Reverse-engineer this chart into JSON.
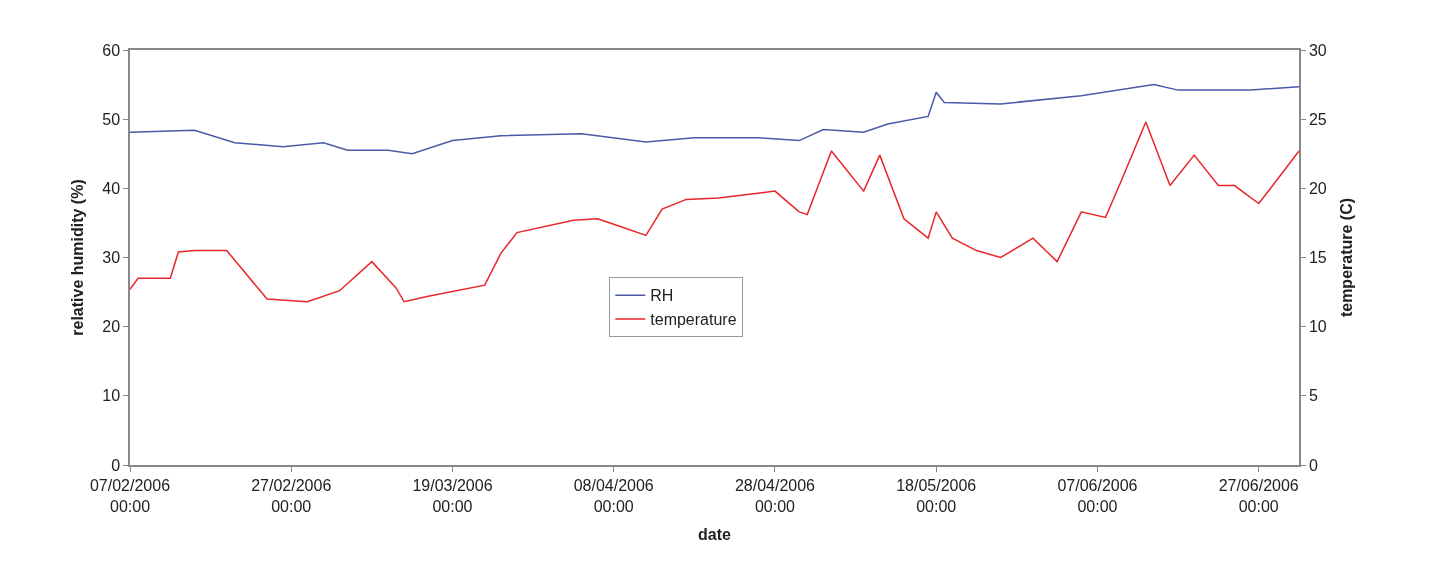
{
  "chart_data": {
    "type": "line",
    "xlabel": "date",
    "ylabel": "relative humidity (%)",
    "y2label": "temperature (C)",
    "xlim": [
      "2006-02-07",
      "2006-07-02"
    ],
    "xticks": [
      {
        "value": "2006-02-07",
        "label": "07/02/2006\n00:00"
      },
      {
        "value": "2006-02-27",
        "label": "27/02/2006\n00:00"
      },
      {
        "value": "2006-03-19",
        "label": "19/03/2006\n00:00"
      },
      {
        "value": "2006-04-08",
        "label": "08/04/2006\n00:00"
      },
      {
        "value": "2006-04-28",
        "label": "28/04/2006\n00:00"
      },
      {
        "value": "2006-05-18",
        "label": "18/05/2006\n00:00"
      },
      {
        "value": "2006-06-07",
        "label": "07/06/2006\n00:00"
      },
      {
        "value": "2006-06-27",
        "label": "27/06/2006\n00:00"
      }
    ],
    "ylim": [
      0,
      60
    ],
    "yticks": [
      0,
      10,
      20,
      30,
      40,
      50,
      60
    ],
    "y2lim": [
      0,
      30
    ],
    "y2ticks": [
      0,
      5,
      10,
      15,
      20,
      25,
      30
    ],
    "legend": "center",
    "line_style": "solid",
    "marker": "none",
    "series": [
      {
        "name": "RH",
        "color": "#4a5aa8",
        "x": [
          "2006-02-07",
          "2006-02-15",
          "2006-02-20",
          "2006-02-26",
          "2006-03-03",
          "2006-03-06",
          "2006-03-11",
          "2006-03-14",
          "2006-03-19",
          "2006-03-25",
          "2006-04-04",
          "2006-04-12",
          "2006-04-18",
          "2006-04-26",
          "2006-05-01",
          "2006-05-04",
          "2006-05-09",
          "2006-05-12",
          "2006-05-17",
          "2006-05-18",
          "2006-05-19",
          "2006-05-26",
          "2006-06-05",
          "2006-06-14",
          "2006-06-17",
          "2006-06-26",
          "2006-07-02"
        ],
        "values": [
          48.1,
          48.4,
          46.6,
          46.0,
          46.6,
          45.5,
          45.5,
          45.0,
          46.9,
          47.6,
          47.9,
          46.7,
          47.3,
          47.3,
          46.9,
          48.5,
          48.1,
          49.3,
          50.4,
          53.9,
          52.4,
          52.2,
          53.4,
          55.0,
          54.2,
          54.2,
          54.7
        ]
      },
      {
        "name": "temperature",
        "color": "#e8262a",
        "axis": "y2",
        "x": [
          "2006-02-07",
          "2006-02-08",
          "2006-02-12",
          "2006-02-13",
          "2006-02-15",
          "2006-02-19",
          "2006-02-24",
          "2006-03-01",
          "2006-03-05",
          "2006-03-09",
          "2006-03-12",
          "2006-03-13",
          "2006-03-16",
          "2006-03-23",
          "2006-03-25",
          "2006-03-27",
          "2006-04-03",
          "2006-04-06",
          "2006-04-09",
          "2006-04-12",
          "2006-04-14",
          "2006-04-17",
          "2006-04-21",
          "2006-04-28",
          "2006-05-01",
          "2006-05-02",
          "2006-05-05",
          "2006-05-09",
          "2006-05-11",
          "2006-05-14",
          "2006-05-17",
          "2006-05-18",
          "2006-05-20",
          "2006-05-23",
          "2006-05-26",
          "2006-05-30",
          "2006-06-02",
          "2006-06-05",
          "2006-06-08",
          "2006-06-10",
          "2006-06-13",
          "2006-06-16",
          "2006-06-19",
          "2006-06-22",
          "2006-06-24",
          "2006-06-27",
          "2006-06-29",
          "2006-07-02"
        ],
        "values": [
          12.7,
          13.5,
          13.5,
          15.4,
          15.5,
          15.5,
          12.0,
          11.8,
          12.6,
          14.7,
          12.8,
          11.8,
          12.2,
          13.0,
          15.3,
          16.8,
          17.7,
          17.8,
          17.2,
          16.6,
          18.5,
          19.2,
          19.3,
          19.8,
          18.3,
          18.1,
          22.7,
          19.8,
          22.4,
          17.8,
          16.4,
          18.3,
          16.4,
          15.5,
          15.0,
          16.4,
          14.7,
          18.3,
          17.9,
          20.6,
          24.8,
          20.2,
          22.4,
          20.2,
          20.2,
          18.9,
          20.4,
          22.7
        ]
      }
    ]
  }
}
